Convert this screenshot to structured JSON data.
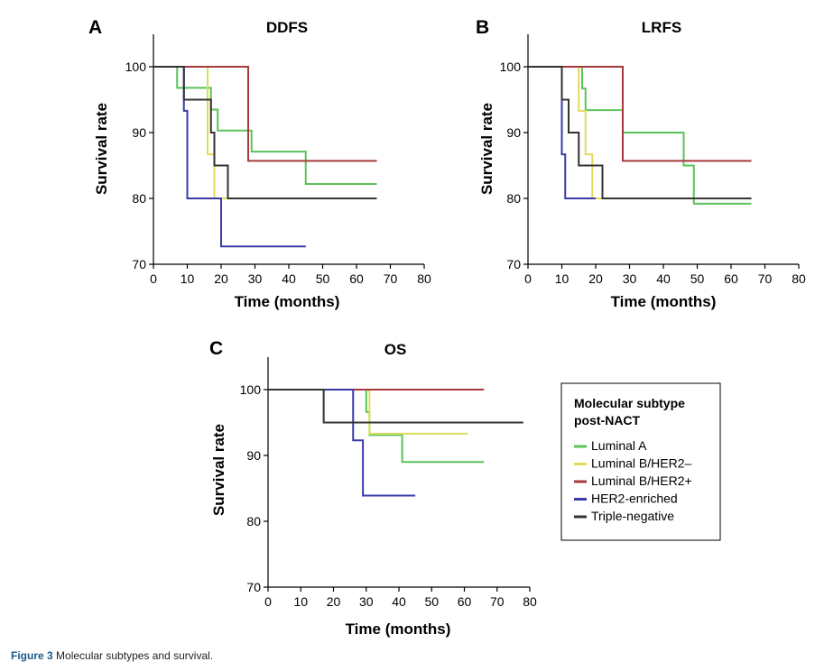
{
  "caption": {
    "label": "Figure 3",
    "text": "Molecular subtypes and survival."
  },
  "legend": {
    "title_lines": [
      "Molecular subtype",
      "post-NACT"
    ],
    "entries": [
      {
        "name": "Luminal A",
        "color": "#5cc25c"
      },
      {
        "name": "Luminal B/HER2–",
        "color": "#e0dc5a"
      },
      {
        "name": "Luminal B/HER2+",
        "color": "#a8383c"
      },
      {
        "name": "HER2-enriched",
        "color": "#3a3aa8"
      },
      {
        "name": "Triple-negative",
        "color": "#333333"
      }
    ]
  },
  "chart_data": [
    {
      "type": "line",
      "step": true,
      "panel_letter": "A",
      "title": "DDFS",
      "xlabel": "Time (months)",
      "ylabel": "Survival rate",
      "xlim": [
        0,
        80
      ],
      "ylim": [
        70,
        105
      ],
      "xticks": [
        0,
        10,
        20,
        30,
        40,
        50,
        60,
        70,
        80
      ],
      "yticks": [
        70,
        80,
        90,
        100
      ],
      "series": [
        {
          "name": "Luminal A",
          "color": "#5cc25c",
          "x": [
            0,
            7,
            16,
            17,
            19,
            29,
            45,
            66
          ],
          "y": [
            100,
            96.8,
            96.8,
            93.5,
            90.3,
            87.1,
            82.2,
            82.2
          ]
        },
        {
          "name": "Luminal B/HER2–",
          "color": "#e0dc5a",
          "x": [
            0,
            16,
            18,
            22
          ],
          "y": [
            100,
            86.7,
            80,
            80
          ]
        },
        {
          "name": "Luminal B/HER2+",
          "color": "#a8383c",
          "x": [
            0,
            28,
            66
          ],
          "y": [
            100,
            85.7,
            85.7
          ]
        },
        {
          "name": "HER2-enriched",
          "color": "#3a3aa8",
          "x": [
            0,
            9,
            10,
            20,
            45
          ],
          "y": [
            100,
            93.3,
            80,
            72.7,
            72.7
          ]
        },
        {
          "name": "Triple-negative",
          "color": "#333333",
          "x": [
            0,
            9,
            17,
            18,
            22,
            66
          ],
          "y": [
            100,
            95,
            90,
            85,
            80,
            80
          ]
        }
      ]
    },
    {
      "type": "line",
      "step": true,
      "panel_letter": "B",
      "title": "LRFS",
      "xlabel": "Time (months)",
      "ylabel": "Survival rate",
      "xlim": [
        0,
        80
      ],
      "ylim": [
        70,
        105
      ],
      "xticks": [
        0,
        10,
        20,
        30,
        40,
        50,
        60,
        70,
        80
      ],
      "yticks": [
        70,
        80,
        90,
        100
      ],
      "series": [
        {
          "name": "Luminal A",
          "color": "#5cc25c",
          "x": [
            0,
            16,
            17,
            28,
            46,
            49,
            66
          ],
          "y": [
            100,
            96.7,
            93.4,
            90,
            85,
            79.2,
            79.2
          ]
        },
        {
          "name": "Luminal B/HER2–",
          "color": "#e0dc5a",
          "x": [
            0,
            15,
            17,
            19,
            22
          ],
          "y": [
            100,
            93.3,
            86.7,
            80,
            80
          ]
        },
        {
          "name": "Luminal B/HER2+",
          "color": "#a8383c",
          "x": [
            0,
            28,
            66
          ],
          "y": [
            100,
            85.7,
            85.7
          ]
        },
        {
          "name": "HER2-enriched",
          "color": "#3a3aa8",
          "x": [
            0,
            10,
            11,
            20
          ],
          "y": [
            100,
            86.7,
            80,
            80
          ]
        },
        {
          "name": "Triple-negative",
          "color": "#333333",
          "x": [
            0,
            10,
            12,
            15,
            22,
            66
          ],
          "y": [
            100,
            95,
            90,
            85,
            80,
            80
          ]
        }
      ]
    },
    {
      "type": "line",
      "step": true,
      "panel_letter": "C",
      "title": "OS",
      "xlabel": "Time (months)",
      "ylabel": "Survival rate",
      "xlim": [
        0,
        80
      ],
      "ylim": [
        70,
        105
      ],
      "xticks": [
        0,
        10,
        20,
        30,
        40,
        50,
        60,
        70,
        80
      ],
      "yticks": [
        70,
        80,
        90,
        100
      ],
      "series": [
        {
          "name": "Luminal A",
          "color": "#5cc25c",
          "x": [
            0,
            30,
            31,
            41,
            66
          ],
          "y": [
            100,
            96.6,
            93.1,
            89,
            89
          ]
        },
        {
          "name": "Luminal B/HER2–",
          "color": "#e0dc5a",
          "x": [
            0,
            31,
            61
          ],
          "y": [
            100,
            93.3,
            93.3
          ]
        },
        {
          "name": "Luminal B/HER2+",
          "color": "#a8383c",
          "x": [
            0,
            66
          ],
          "y": [
            100,
            100
          ]
        },
        {
          "name": "HER2-enriched",
          "color": "#3a3aa8",
          "x": [
            0,
            26,
            29,
            45
          ],
          "y": [
            100,
            92.3,
            83.9,
            83.9
          ]
        },
        {
          "name": "Triple-negative",
          "color": "#333333",
          "x": [
            0,
            17,
            78
          ],
          "y": [
            100,
            95,
            95
          ]
        }
      ]
    }
  ]
}
